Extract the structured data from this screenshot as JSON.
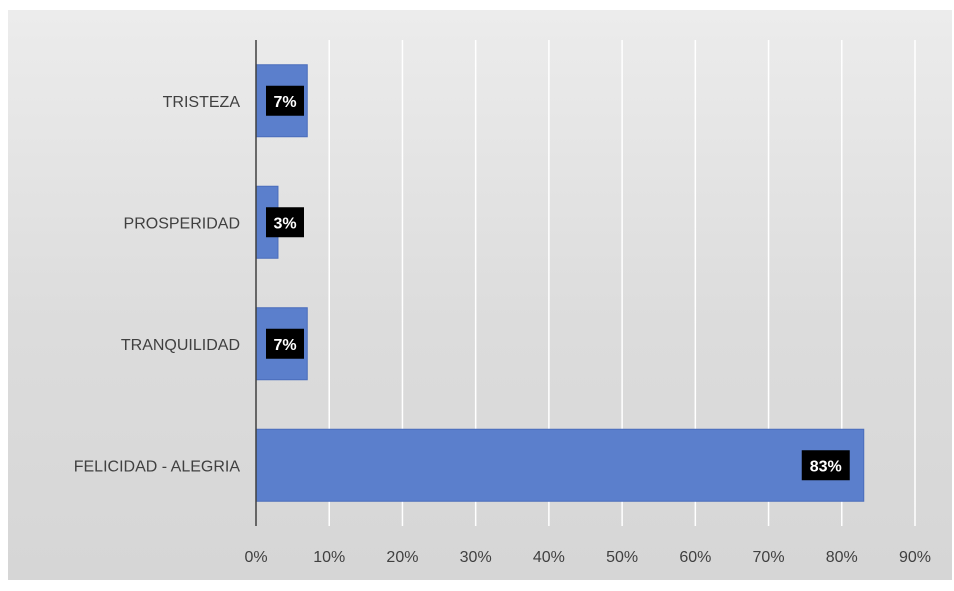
{
  "chart_data": {
    "type": "bar",
    "orientation": "horizontal",
    "categories": [
      "TRISTEZA",
      "PROSPERIDAD",
      "TRANQUILIDAD",
      "FELICIDAD - ALEGRIA"
    ],
    "values": [
      7,
      3,
      7,
      83
    ],
    "data_labels": [
      "7%",
      "3%",
      "7%",
      "83%"
    ],
    "xlim": [
      0,
      90
    ],
    "x_ticks": [
      0,
      10,
      20,
      30,
      40,
      50,
      60,
      70,
      80,
      90
    ],
    "x_tick_labels": [
      "0%",
      "10%",
      "20%",
      "30%",
      "40%",
      "50%",
      "60%",
      "70%",
      "80%",
      "90%"
    ],
    "title": "",
    "xlabel": "",
    "ylabel": "",
    "grid": "vertical",
    "legend": "none",
    "colors": {
      "bar": "#5b7fcc",
      "bar_edge": "#4a6dbb",
      "gridline": "#ffffff",
      "axis": "#404040",
      "label_box": "#000000",
      "label_text": "#ffffff",
      "text": "#404040"
    }
  }
}
